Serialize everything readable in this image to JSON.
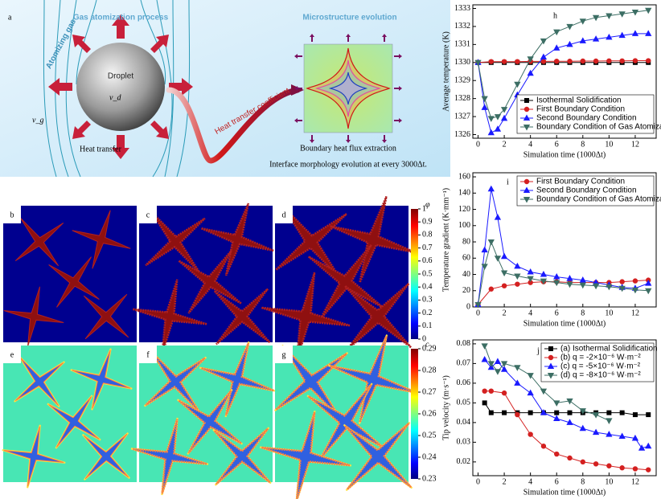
{
  "figure": {
    "panel_a": {
      "label": "a",
      "title_left": "Gas atomization process",
      "title_right": "Microstructure evolution",
      "atomizing_gas": "Atomizing gas",
      "droplet": "Droplet",
      "vg": "v_g",
      "vd": "v_d",
      "heat_transfer": "Heat transfer",
      "htc": "Heat transfer coefficient",
      "boundary": "Boundary heat flux extraction",
      "interface": "Interface morphology evolution at every 3000Δt."
    },
    "phase_panels": [
      "b",
      "c",
      "d"
    ],
    "conc_panels": [
      "e",
      "f",
      "g"
    ],
    "colorbars": [
      {
        "label": "φ",
        "ticks": [
          0,
          0.1,
          0.2,
          0.3,
          0.4,
          0.5,
          0.6,
          0.7,
          0.8,
          0.9,
          1
        ],
        "lim": [
          0,
          1
        ]
      },
      {
        "label": "c",
        "ticks": [
          0.23,
          0.24,
          0.25,
          0.26,
          0.27,
          0.28,
          0.29
        ],
        "lim": [
          0.23,
          0.29
        ]
      }
    ]
  },
  "chart_data": [
    {
      "type": "line",
      "panel_label": "h",
      "xlabel": "Simulation time (1000Δt)",
      "ylabel": "Average temperature (K)",
      "xlim": [
        -0.4,
        13.6
      ],
      "ylim": [
        1325.8,
        1333.2
      ],
      "xticks": [
        0,
        2,
        4,
        6,
        8,
        10,
        12
      ],
      "yticks": [
        1326,
        1327,
        1328,
        1329,
        1330,
        1331,
        1332,
        1333
      ],
      "legend": "lower-right",
      "series": [
        {
          "name": "Isothermal Solidification",
          "color": "#000000",
          "marker": "square",
          "x": [
            0,
            1,
            2,
            3,
            4,
            5,
            6,
            7,
            8,
            9,
            10,
            11,
            12,
            13
          ],
          "values": [
            1330,
            1330,
            1330,
            1330,
            1330,
            1330,
            1330,
            1330,
            1330,
            1330,
            1330,
            1330,
            1330,
            1330
          ]
        },
        {
          "name": "First Boundary Condition",
          "color": "#d42020",
          "marker": "circle",
          "x": [
            0,
            1,
            2,
            3,
            4,
            5,
            6,
            7,
            8,
            9,
            10,
            11,
            12,
            13
          ],
          "values": [
            1330,
            1330.05,
            1330.05,
            1330.05,
            1330.06,
            1330.06,
            1330.07,
            1330.07,
            1330.08,
            1330.08,
            1330.09,
            1330.09,
            1330.1,
            1330.1
          ]
        },
        {
          "name": "Second Boundary Condition",
          "color": "#1a1aff",
          "marker": "triangle",
          "x": [
            0,
            0.5,
            1,
            1.5,
            2,
            3,
            4,
            5,
            6,
            7,
            8,
            9,
            10,
            11,
            12,
            13
          ],
          "values": [
            1330,
            1327.5,
            1326.1,
            1326.3,
            1326.9,
            1328.2,
            1329.4,
            1330.3,
            1330.8,
            1331,
            1331.2,
            1331.3,
            1331.4,
            1331.5,
            1331.6,
            1331.6
          ]
        },
        {
          "name": "Boundary Condition of Gas Atomization",
          "color": "#3c6e64",
          "marker": "triangle-down",
          "x": [
            0,
            0.5,
            1,
            1.5,
            2,
            3,
            4,
            5,
            6,
            7,
            8,
            9,
            10,
            11,
            12,
            13
          ],
          "values": [
            1330,
            1328,
            1326.9,
            1327,
            1327.4,
            1328.8,
            1330.2,
            1331.2,
            1331.7,
            1332,
            1332.3,
            1332.5,
            1332.6,
            1332.7,
            1332.8,
            1332.9
          ]
        }
      ]
    },
    {
      "type": "line",
      "panel_label": "i",
      "xlabel": "Simulation time (1000Δt)",
      "ylabel": "Temperature gradient (K·mm⁻¹)",
      "xlim": [
        -0.4,
        13.6
      ],
      "ylim": [
        0,
        165
      ],
      "xticks": [
        0,
        2,
        4,
        6,
        8,
        10,
        12
      ],
      "yticks": [
        0,
        20,
        40,
        60,
        80,
        100,
        120,
        140,
        160
      ],
      "legend": "upper-right",
      "series": [
        {
          "name": "First Boundary Condition",
          "color": "#d42020",
          "marker": "circle",
          "x": [
            0,
            1,
            2,
            3,
            4,
            5,
            6,
            7,
            8,
            9,
            10,
            11,
            12,
            13
          ],
          "values": [
            3,
            22,
            26,
            28,
            30,
            31,
            31,
            30,
            30,
            30,
            30,
            31,
            32,
            33
          ]
        },
        {
          "name": "Second Boundary Condition",
          "color": "#1a1aff",
          "marker": "triangle",
          "x": [
            0,
            0.5,
            1,
            1.5,
            2,
            3,
            4,
            5,
            6,
            7,
            8,
            9,
            10,
            11,
            12,
            13
          ],
          "values": [
            3,
            70,
            145,
            110,
            62,
            50,
            43,
            40,
            37,
            35,
            33,
            30,
            27,
            24,
            23,
            29
          ]
        },
        {
          "name": "Boundary Condition of Gas Atomization",
          "color": "#3c6e64",
          "marker": "triangle-down",
          "x": [
            0,
            0.5,
            1,
            1.5,
            2,
            3,
            4,
            5,
            6,
            7,
            8,
            9,
            10,
            11,
            12,
            13
          ],
          "values": [
            3,
            50,
            80,
            60,
            42,
            38,
            35,
            32,
            30,
            28,
            27,
            26,
            25,
            23,
            21,
            20
          ]
        }
      ]
    },
    {
      "type": "line",
      "panel_label": "j",
      "xlabel": "Simulation time (1000Δt)",
      "ylabel": "Tip velocity (m·s⁻¹)",
      "xlim": [
        -0.4,
        13.6
      ],
      "ylim": [
        0.013,
        0.082
      ],
      "xticks": [
        0,
        2,
        4,
        6,
        8,
        10,
        12
      ],
      "yticks": [
        0.02,
        0.03,
        0.04,
        0.05,
        0.06,
        0.07,
        0.08
      ],
      "legend": "upper-right",
      "series": [
        {
          "name": "(a) Isothermal Solidification",
          "color": "#000000",
          "marker": "square",
          "x": [
            0.5,
            1,
            2,
            3,
            4,
            5,
            6,
            7,
            8,
            9,
            10,
            11,
            12,
            13
          ],
          "values": [
            0.05,
            0.045,
            0.045,
            0.045,
            0.045,
            0.045,
            0.045,
            0.045,
            0.045,
            0.045,
            0.045,
            0.045,
            0.044,
            0.044
          ]
        },
        {
          "name": "(b) q = -2×10⁻⁶ W·m⁻²",
          "color": "#d42020",
          "marker": "circle",
          "x": [
            0.5,
            1,
            2,
            3,
            4,
            5,
            6,
            7,
            8,
            9,
            10,
            11,
            12,
            13
          ],
          "values": [
            0.056,
            0.056,
            0.055,
            0.044,
            0.034,
            0.028,
            0.024,
            0.022,
            0.02,
            0.019,
            0.018,
            0.017,
            0.0165,
            0.016
          ]
        },
        {
          "name": "(c) q = -5×10⁻⁶ W·m⁻²",
          "color": "#1a1aff",
          "marker": "triangle",
          "x": [
            0.5,
            1,
            1.5,
            2,
            3,
            4,
            5,
            6,
            7,
            8,
            9,
            10,
            11,
            12,
            12.5,
            13
          ],
          "values": [
            0.072,
            0.068,
            0.071,
            0.067,
            0.06,
            0.055,
            0.045,
            0.042,
            0.04,
            0.037,
            0.035,
            0.034,
            0.033,
            0.032,
            0.027,
            0.028
          ]
        },
        {
          "name": "(d) q = -8×10⁻⁶ W·m⁻²",
          "color": "#3c6e64",
          "marker": "triangle-down",
          "x": [
            0.5,
            1,
            1.5,
            2,
            3,
            4,
            5,
            6,
            7,
            8,
            9,
            10
          ],
          "values": [
            0.079,
            0.07,
            0.066,
            0.07,
            0.068,
            0.064,
            0.056,
            0.05,
            0.051,
            0.046,
            0.044,
            0.041
          ]
        }
      ]
    }
  ]
}
